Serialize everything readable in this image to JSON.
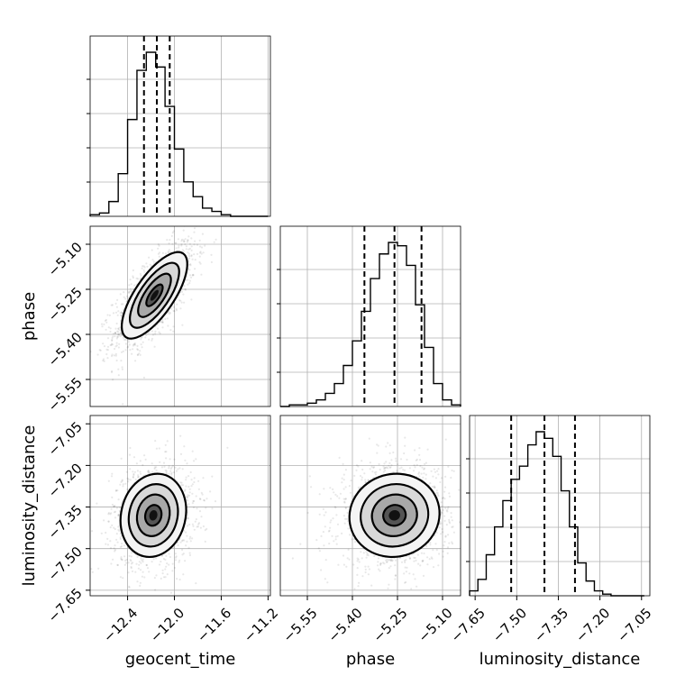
{
  "chart_data": {
    "type": "corner",
    "parameters": [
      "geocent_time",
      "phase",
      "luminosity_distance"
    ],
    "axes": {
      "geocent_time": {
        "label": "geocent_time",
        "range": [
          -12.72,
          -11.18
        ],
        "ticks": [
          -12.4,
          -12.0,
          -11.6,
          -11.2
        ],
        "tick_labels": [
          "−12.4",
          "−12.0",
          "−11.6",
          "−11.2"
        ]
      },
      "phase": {
        "label": "phase",
        "range": [
          -5.64,
          -5.04
        ],
        "ticks": [
          -5.55,
          -5.4,
          -5.25,
          -5.1
        ],
        "tick_labels": [
          "−5.55",
          "−5.40",
          "−5.25",
          "−5.10"
        ]
      },
      "luminosity_distance": {
        "label": "luminosity_distance",
        "range": [
          -7.67,
          -7.02
        ],
        "ticks": [
          -7.65,
          -7.5,
          -7.35,
          -7.2,
          -7.05
        ],
        "tick_labels": [
          "−7.65",
          "−7.50",
          "−7.35",
          "−7.20",
          "−7.05"
        ]
      }
    },
    "marginals": {
      "geocent_time": {
        "bin_edges": [
          -12.72,
          -12.64,
          -12.56,
          -12.48,
          -12.4,
          -12.32,
          -12.24,
          -12.16,
          -12.08,
          -12.0,
          -11.92,
          -11.84,
          -11.76,
          -11.68,
          -11.6,
          -11.52,
          -11.44,
          -11.36,
          -11.28,
          -11.2
        ],
        "counts": [
          1,
          2,
          9,
          26,
          59,
          89,
          100,
          91,
          67,
          41,
          21,
          12,
          5,
          3,
          1,
          0,
          0,
          0,
          0
        ],
        "quantiles": [
          -12.26,
          -12.15,
          -12.04
        ]
      },
      "phase": {
        "bin_edges": [
          -5.64,
          -5.61,
          -5.58,
          -5.55,
          -5.52,
          -5.49,
          -5.46,
          -5.43,
          -5.4,
          -5.37,
          -5.34,
          -5.31,
          -5.28,
          -5.25,
          -5.22,
          -5.19,
          -5.16,
          -5.13,
          -5.1,
          -5.07,
          -5.04
        ],
        "counts": [
          0,
          1,
          1,
          2,
          4,
          8,
          14,
          25,
          40,
          58,
          78,
          93,
          100,
          98,
          86,
          62,
          36,
          14,
          4,
          1
        ],
        "quantiles": [
          -5.36,
          -5.26,
          -5.17
        ]
      },
      "luminosity_distance": {
        "bin_edges": [
          -7.67,
          -7.64,
          -7.61,
          -7.58,
          -7.55,
          -7.52,
          -7.49,
          -7.46,
          -7.43,
          -7.4,
          -7.37,
          -7.34,
          -7.31,
          -7.28,
          -7.25,
          -7.22,
          -7.19,
          -7.16,
          -7.13,
          -7.1,
          -7.07,
          -7.04
        ],
        "counts": [
          3,
          10,
          25,
          42,
          58,
          71,
          79,
          92,
          100,
          96,
          85,
          64,
          42,
          20,
          9,
          3,
          1,
          0,
          0,
          0,
          0
        ],
        "quantiles": [
          -7.52,
          -7.4,
          -7.29
        ]
      }
    },
    "joint": [
      {
        "x": "geocent_time",
        "y": "phase",
        "center": [
          -12.17,
          -5.27
        ],
        "sigma": [
          0.14,
          0.072
        ],
        "correlation": 0.72
      },
      {
        "x": "geocent_time",
        "y": "luminosity_distance",
        "center": [
          -12.18,
          -7.38
        ],
        "sigma": [
          0.14,
          0.075
        ],
        "correlation": 0.12
      },
      {
        "x": "phase",
        "y": "luminosity_distance",
        "center": [
          -5.26,
          -7.38
        ],
        "sigma": [
          0.075,
          0.075
        ],
        "correlation": 0.05
      }
    ],
    "grid": true,
    "contour_levels": [
      "0.5",
      "1.0",
      "1.5",
      "2.0"
    ]
  }
}
